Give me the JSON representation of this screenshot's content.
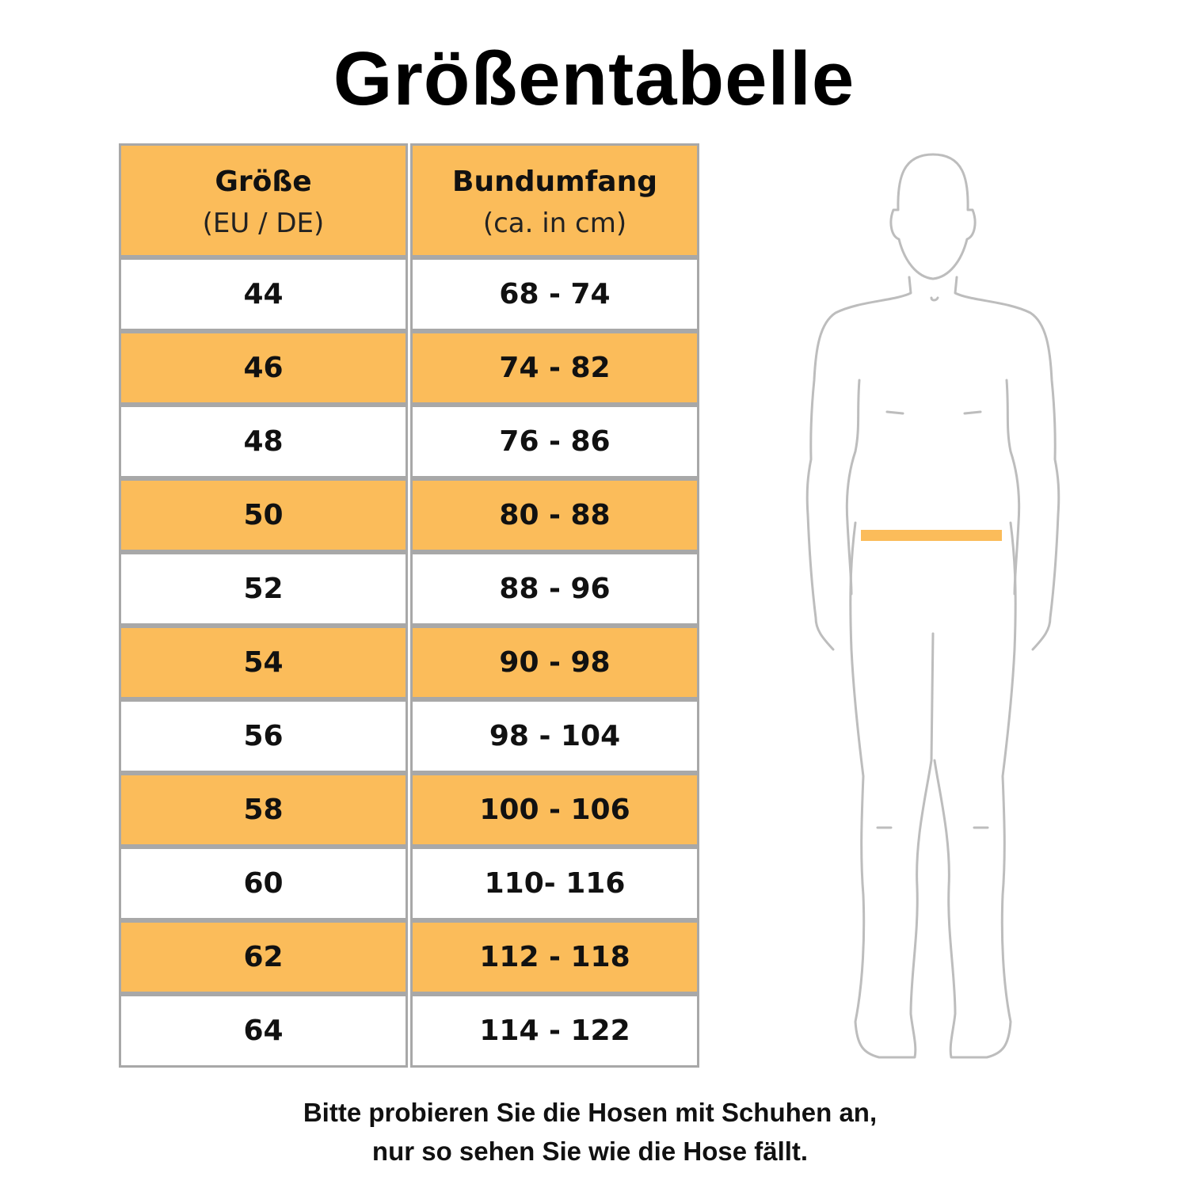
{
  "title": "Größentabelle",
  "table": {
    "headers": [
      {
        "main": "Größe",
        "sub": "(EU / DE)"
      },
      {
        "main": "Bundumfang",
        "sub": "(ca. in cm)"
      }
    ],
    "rows": [
      {
        "size": "44",
        "waist": "68 - 74"
      },
      {
        "size": "46",
        "waist": "74 - 82"
      },
      {
        "size": "48",
        "waist": "76 - 86"
      },
      {
        "size": "50",
        "waist": "80 - 88"
      },
      {
        "size": "52",
        "waist": "88 - 96"
      },
      {
        "size": "54",
        "waist": "90 - 98"
      },
      {
        "size": "56",
        "waist": "98 - 104"
      },
      {
        "size": "58",
        "waist": "100 - 106"
      },
      {
        "size": "60",
        "waist": "110- 116"
      },
      {
        "size": "62",
        "waist": "112 - 118"
      },
      {
        "size": "64",
        "waist": "114 - 122"
      }
    ]
  },
  "footer": {
    "line1": "Bitte probieren Sie die Hosen mit Schuhen an,",
    "line2": "nur so sehen Sie wie die Hose fällt."
  },
  "colors": {
    "accent": "#fbbc5a",
    "border": "#a8a8a8",
    "figure": "#bdbdbd"
  },
  "figure": {
    "icon": "body-outline-icon",
    "marker": "waist-band"
  }
}
